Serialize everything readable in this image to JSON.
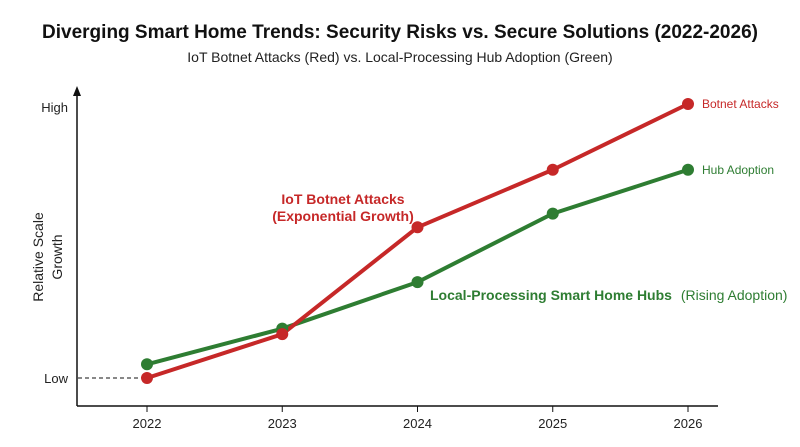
{
  "chart_data": {
    "type": "line",
    "title": "Diverging Smart Home Trends: Security Risks vs. Secure Solutions (2022-2026)",
    "subtitle": "IoT Botnet Attacks (Red) vs. Local-Processing Hub Adoption (Green)",
    "ylabel_lines": [
      "Relative Scale",
      "Growth"
    ],
    "x": [
      "2022",
      "2023",
      "2024",
      "2025",
      "2026"
    ],
    "y_ticks": [
      "High",
      "Low"
    ],
    "ylim": [
      0,
      100
    ],
    "y_tick_values": {
      "High": 100,
      "Low": 0
    },
    "grid": false,
    "series": [
      {
        "name": "Botnet Attacks",
        "color": "#c62828",
        "values": [
          0,
          16,
          55,
          76,
          100
        ],
        "annotation_lines": [
          "IoT Botnet Attacks",
          "(Exponential Growth)"
        ]
      },
      {
        "name": "Hub Adoption",
        "color": "#2e7d32",
        "values": [
          5,
          18,
          35,
          60,
          76
        ],
        "annotation_bold": "Local-Processing Smart Home Hubs",
        "annotation_light": "(Rising Adoption)"
      }
    ]
  }
}
